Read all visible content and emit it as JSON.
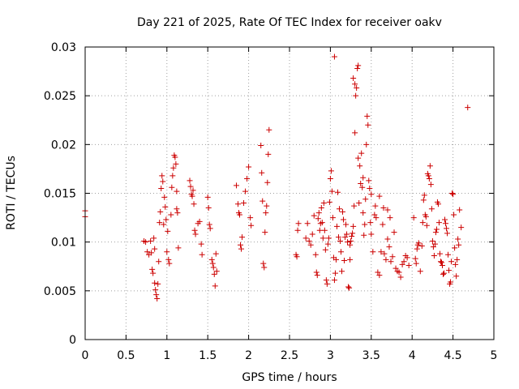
{
  "chart_data": {
    "type": "scatter",
    "title": "Day 221 of 2025, Rate Of TEC Index for receiver oakv",
    "xlabel": "GPS time / hours",
    "ylabel": "ROTI / TECUs",
    "xlim": [
      0,
      5
    ],
    "ylim": [
      0,
      0.03
    ],
    "xticks": [
      0,
      0.5,
      1,
      1.5,
      2,
      2.5,
      3,
      3.5,
      4,
      4.5,
      5
    ],
    "xtick_labels": [
      "0",
      "0.5",
      "1",
      "1.5",
      "2",
      "2.5",
      "3",
      "3.5",
      "4",
      "4.5",
      "5"
    ],
    "yticks": [
      0,
      0.005,
      0.01,
      0.015,
      0.02,
      0.025,
      0.03
    ],
    "ytick_labels": [
      "0",
      "0.005",
      "0.01",
      "0.015",
      "0.02",
      "0.025",
      "0.03"
    ],
    "grid": true,
    "marker": "+",
    "color": "#cc0000",
    "series": [
      {
        "name": "ROTI",
        "points": [
          [
            0.0,
            0.0132
          ],
          [
            0.0,
            0.0126
          ],
          [
            0.72,
            0.0101
          ],
          [
            0.74,
            0.01
          ],
          [
            0.76,
            0.009
          ],
          [
            0.78,
            0.0087
          ],
          [
            0.8,
            0.0101
          ],
          [
            0.81,
            0.0089
          ],
          [
            0.82,
            0.0072
          ],
          [
            0.83,
            0.0068
          ],
          [
            0.84,
            0.0104
          ],
          [
            0.85,
            0.0093
          ],
          [
            0.85,
            0.0058
          ],
          [
            0.86,
            0.0051
          ],
          [
            0.87,
            0.0046
          ],
          [
            0.88,
            0.0042
          ],
          [
            0.89,
            0.0057
          ],
          [
            0.9,
            0.008
          ],
          [
            0.91,
            0.012
          ],
          [
            0.92,
            0.0131
          ],
          [
            0.93,
            0.0155
          ],
          [
            0.94,
            0.0168
          ],
          [
            0.95,
            0.0162
          ],
          [
            0.96,
            0.0118
          ],
          [
            0.97,
            0.0146
          ],
          [
            0.98,
            0.0136
          ],
          [
            0.99,
            0.0123
          ],
          [
            1.0,
            0.009
          ],
          [
            1.01,
            0.0111
          ],
          [
            1.02,
            0.0082
          ],
          [
            1.03,
            0.0078
          ],
          [
            1.05,
            0.0128
          ],
          [
            1.06,
            0.0156
          ],
          [
            1.07,
            0.0168
          ],
          [
            1.08,
            0.0176
          ],
          [
            1.09,
            0.0189
          ],
          [
            1.1,
            0.0187
          ],
          [
            1.11,
            0.018
          ],
          [
            1.12,
            0.0152
          ],
          [
            1.12,
            0.0134
          ],
          [
            1.13,
            0.013
          ],
          [
            1.14,
            0.0094
          ],
          [
            1.28,
            0.0163
          ],
          [
            1.29,
            0.0157
          ],
          [
            1.3,
            0.0149
          ],
          [
            1.31,
            0.0147
          ],
          [
            1.32,
            0.0153
          ],
          [
            1.33,
            0.0139
          ],
          [
            1.34,
            0.0112
          ],
          [
            1.35,
            0.0108
          ],
          [
            1.38,
            0.0119
          ],
          [
            1.4,
            0.0121
          ],
          [
            1.42,
            0.0098
          ],
          [
            1.43,
            0.0087
          ],
          [
            1.5,
            0.0146
          ],
          [
            1.51,
            0.0135
          ],
          [
            1.52,
            0.0118
          ],
          [
            1.53,
            0.0114
          ],
          [
            1.55,
            0.0082
          ],
          [
            1.56,
            0.0078
          ],
          [
            1.57,
            0.0074
          ],
          [
            1.58,
            0.0067
          ],
          [
            1.59,
            0.0055
          ],
          [
            1.6,
            0.0088
          ],
          [
            1.61,
            0.007
          ],
          [
            1.85,
            0.0158
          ],
          [
            1.87,
            0.0139
          ],
          [
            1.88,
            0.013
          ],
          [
            1.89,
            0.0128
          ],
          [
            1.9,
            0.0097
          ],
          [
            1.91,
            0.0093
          ],
          [
            1.92,
            0.0105
          ],
          [
            1.94,
            0.014
          ],
          [
            1.96,
            0.0152
          ],
          [
            1.98,
            0.0165
          ],
          [
            2.0,
            0.0177
          ],
          [
            2.02,
            0.0125
          ],
          [
            2.03,
            0.0117
          ],
          [
            2.15,
            0.0199
          ],
          [
            2.16,
            0.0171
          ],
          [
            2.17,
            0.0142
          ],
          [
            2.18,
            0.0078
          ],
          [
            2.19,
            0.0074
          ],
          [
            2.2,
            0.011
          ],
          [
            2.21,
            0.013
          ],
          [
            2.22,
            0.0137
          ],
          [
            2.23,
            0.0161
          ],
          [
            2.24,
            0.019
          ],
          [
            2.25,
            0.0215
          ],
          [
            2.58,
            0.0087
          ],
          [
            2.59,
            0.0085
          ],
          [
            2.6,
            0.0112
          ],
          [
            2.61,
            0.0119
          ],
          [
            2.7,
            0.0104
          ],
          [
            2.72,
            0.0119
          ],
          [
            2.74,
            0.0101
          ],
          [
            2.76,
            0.0097
          ],
          [
            2.78,
            0.0108
          ],
          [
            2.8,
            0.0127
          ],
          [
            2.82,
            0.0087
          ],
          [
            2.83,
            0.0069
          ],
          [
            2.84,
            0.0066
          ],
          [
            2.85,
            0.0124
          ],
          [
            2.86,
            0.013
          ],
          [
            2.87,
            0.0112
          ],
          [
            2.88,
            0.0119
          ],
          [
            2.89,
            0.0135
          ],
          [
            2.9,
            0.012
          ],
          [
            2.91,
            0.0104
          ],
          [
            2.92,
            0.014
          ],
          [
            2.93,
            0.0112
          ],
          [
            2.94,
            0.0092
          ],
          [
            2.95,
            0.0061
          ],
          [
            2.96,
            0.0057
          ],
          [
            2.97,
            0.0098
          ],
          [
            2.98,
            0.0104
          ],
          [
            2.99,
            0.0141
          ],
          [
            3.0,
            0.0165
          ],
          [
            3.01,
            0.0173
          ],
          [
            3.02,
            0.0152
          ],
          [
            3.03,
            0.0125
          ],
          [
            3.04,
            0.0084
          ],
          [
            3.05,
            0.0061
          ],
          [
            3.06,
            0.0068
          ],
          [
            3.07,
            0.0082
          ],
          [
            3.08,
            0.0116
          ],
          [
            3.09,
            0.0151
          ],
          [
            3.1,
            0.0105
          ],
          [
            3.11,
            0.0134
          ],
          [
            3.12,
            0.0101
          ],
          [
            3.13,
            0.009
          ],
          [
            3.14,
            0.007
          ],
          [
            3.15,
            0.0131
          ],
          [
            3.16,
            0.0123
          ],
          [
            3.17,
            0.0081
          ],
          [
            3.18,
            0.0105
          ],
          [
            3.19,
            0.0118
          ],
          [
            3.2,
            0.0108
          ],
          [
            3.21,
            0.01
          ],
          [
            3.22,
            0.0054
          ],
          [
            3.23,
            0.0053
          ],
          [
            3.24,
            0.0097
          ],
          [
            3.25,
            0.0101
          ],
          [
            3.26,
            0.0106
          ],
          [
            3.27,
            0.0109
          ],
          [
            3.28,
            0.0116
          ],
          [
            3.29,
            0.0137
          ],
          [
            3.3,
            0.0212
          ],
          [
            3.31,
            0.025
          ],
          [
            3.32,
            0.0258
          ],
          [
            3.33,
            0.0278
          ],
          [
            3.34,
            0.0186
          ],
          [
            3.35,
            0.014
          ],
          [
            3.36,
            0.0178
          ],
          [
            3.37,
            0.016
          ],
          [
            3.38,
            0.0191
          ],
          [
            3.39,
            0.0156
          ],
          [
            3.4,
            0.013
          ],
          [
            3.41,
            0.0107
          ],
          [
            3.42,
            0.0118
          ],
          [
            3.43,
            0.0144
          ],
          [
            3.44,
            0.02
          ],
          [
            3.45,
            0.0229
          ],
          [
            3.46,
            0.022
          ],
          [
            3.47,
            0.0163
          ],
          [
            3.48,
            0.0155
          ],
          [
            3.49,
            0.012
          ],
          [
            3.5,
            0.0108
          ],
          [
            3.52,
            0.009
          ],
          [
            3.54,
            0.0128
          ],
          [
            3.56,
            0.0125
          ],
          [
            3.58,
            0.0069
          ],
          [
            3.6,
            0.0066
          ],
          [
            3.62,
            0.009
          ],
          [
            3.64,
            0.0118
          ],
          [
            3.66,
            0.0088
          ],
          [
            3.68,
            0.0082
          ],
          [
            3.7,
            0.0103
          ],
          [
            3.72,
            0.0095
          ],
          [
            3.74,
            0.008
          ],
          [
            3.76,
            0.0085
          ],
          [
            3.78,
            0.011
          ],
          [
            3.8,
            0.0073
          ],
          [
            3.82,
            0.007
          ],
          [
            3.84,
            0.0069
          ],
          [
            3.86,
            0.0064
          ],
          [
            3.88,
            0.0077
          ],
          [
            3.9,
            0.008
          ],
          [
            3.92,
            0.0086
          ],
          [
            3.94,
            0.0084
          ],
          [
            3.96,
            0.0076
          ],
          [
            3.05,
            0.029
          ],
          [
            3.24,
            0.0082
          ],
          [
            3.28,
            0.0268
          ],
          [
            3.3,
            0.0262
          ],
          [
            3.34,
            0.0281
          ],
          [
            3.4,
            0.0166
          ],
          [
            3.5,
            0.0149
          ],
          [
            3.55,
            0.0137
          ],
          [
            3.6,
            0.0147
          ],
          [
            3.65,
            0.0135
          ],
          [
            3.7,
            0.0133
          ],
          [
            3.73,
            0.0125
          ],
          [
            4.02,
            0.0125
          ],
          [
            4.04,
            0.0083
          ],
          [
            4.05,
            0.0078
          ],
          [
            4.06,
            0.0093
          ],
          [
            4.07,
            0.0097
          ],
          [
            4.08,
            0.0099
          ],
          [
            4.1,
            0.007
          ],
          [
            4.12,
            0.0096
          ],
          [
            4.13,
            0.012
          ],
          [
            4.14,
            0.0143
          ],
          [
            4.15,
            0.0148
          ],
          [
            4.16,
            0.0128
          ],
          [
            4.17,
            0.0126
          ],
          [
            4.18,
            0.0117
          ],
          [
            4.19,
            0.017
          ],
          [
            4.2,
            0.0168
          ],
          [
            4.21,
            0.0165
          ],
          [
            4.22,
            0.0178
          ],
          [
            4.23,
            0.0159
          ],
          [
            4.24,
            0.0134
          ],
          [
            4.25,
            0.0101
          ],
          [
            4.26,
            0.0095
          ],
          [
            4.27,
            0.0086
          ],
          [
            4.28,
            0.0098
          ],
          [
            4.29,
            0.011
          ],
          [
            4.3,
            0.0113
          ],
          [
            4.31,
            0.0141
          ],
          [
            4.32,
            0.0139
          ],
          [
            4.33,
            0.012
          ],
          [
            4.34,
            0.0088
          ],
          [
            4.35,
            0.008
          ],
          [
            4.36,
            0.0079
          ],
          [
            4.37,
            0.0076
          ],
          [
            4.38,
            0.0067
          ],
          [
            4.39,
            0.0068
          ],
          [
            4.4,
            0.0123
          ],
          [
            4.41,
            0.0119
          ],
          [
            4.42,
            0.0114
          ],
          [
            4.43,
            0.0109
          ],
          [
            4.44,
            0.0087
          ],
          [
            4.45,
            0.0071
          ],
          [
            4.46,
            0.0057
          ],
          [
            4.47,
            0.0059
          ],
          [
            4.48,
            0.008
          ],
          [
            4.49,
            0.015
          ],
          [
            4.5,
            0.0149
          ],
          [
            4.51,
            0.0128
          ],
          [
            4.52,
            0.0094
          ],
          [
            4.53,
            0.0077
          ],
          [
            4.54,
            0.0065
          ],
          [
            4.55,
            0.0082
          ],
          [
            4.56,
            0.0103
          ],
          [
            4.57,
            0.0097
          ],
          [
            4.58,
            0.0133
          ],
          [
            4.6,
            0.0115
          ],
          [
            4.68,
            0.0238
          ]
        ]
      }
    ]
  }
}
